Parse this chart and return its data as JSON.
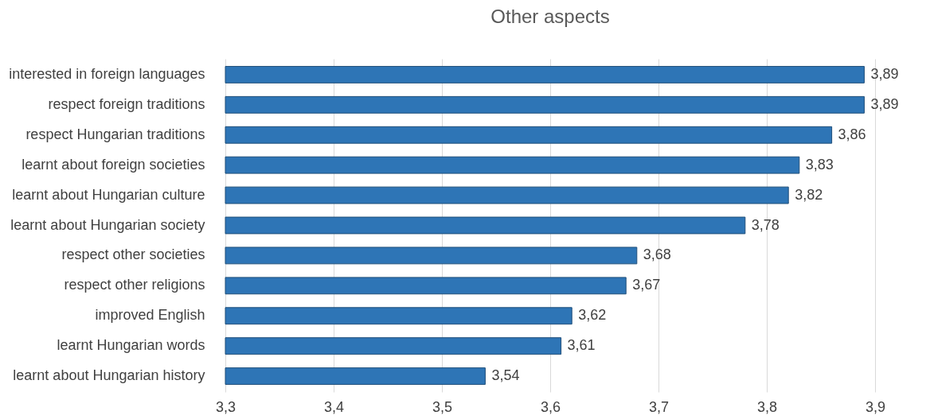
{
  "chart_data": {
    "type": "bar",
    "orientation": "horizontal",
    "title": "Other aspects",
    "categories": [
      "interested in foreign languages",
      "respect foreign traditions",
      "respect Hungarian traditions",
      "learnt about foreign societies",
      "learnt about Hungarian culture",
      "learnt about Hungarian society",
      "respect other societies",
      "respect other religions",
      "improved English",
      "learnt Hungarian words",
      "learnt about Hungarian history"
    ],
    "values": [
      3.89,
      3.89,
      3.86,
      3.83,
      3.82,
      3.78,
      3.68,
      3.67,
      3.62,
      3.61,
      3.54
    ],
    "value_labels": [
      "3,89",
      "3,89",
      "3,86",
      "3,83",
      "3,82",
      "3,78",
      "3,68",
      "3,67",
      "3,62",
      "3,61",
      "3,54"
    ],
    "color": "#2e75b6",
    "xlim": [
      3.3,
      3.9
    ],
    "xticks": [
      {
        "value": 3.3,
        "label": "3,3"
      },
      {
        "value": 3.4,
        "label": "3,4"
      },
      {
        "value": 3.5,
        "label": "3,5"
      },
      {
        "value": 3.6,
        "label": "3,6"
      },
      {
        "value": 3.7,
        "label": "3,7"
      },
      {
        "value": 3.8,
        "label": "3,8"
      },
      {
        "value": 3.9,
        "label": "3,9"
      }
    ],
    "grid": "x"
  }
}
